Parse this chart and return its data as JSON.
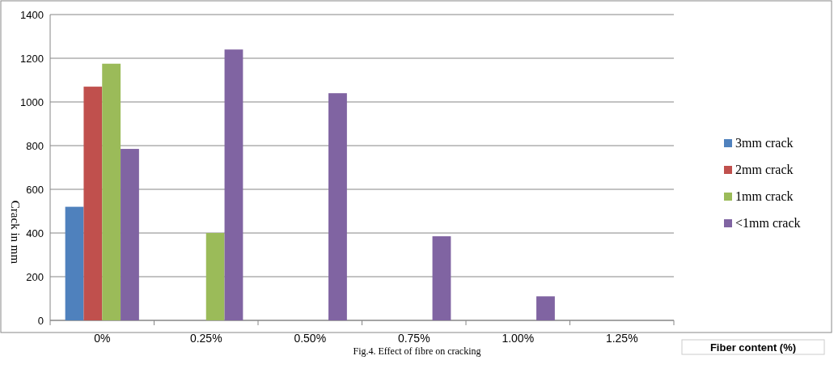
{
  "chart_data": {
    "type": "bar",
    "xlabel": "Fiber content (%)",
    "ylabel": "Crack in mm",
    "annotations": [
      "Fig.4. Effect of fibre on cracking"
    ],
    "categories": [
      "0%",
      "0.25%",
      "0.50%",
      "0.75%",
      "1.00%",
      "1.25%"
    ],
    "series": [
      {
        "name": "3mm crack",
        "color": "#4f81bd",
        "values": [
          520,
          null,
          null,
          null,
          null,
          null
        ]
      },
      {
        "name": "2mm crack",
        "color": "#c0504d",
        "values": [
          1070,
          null,
          null,
          null,
          null,
          null
        ]
      },
      {
        "name": "1mm crack",
        "color": "#9bbb59",
        "values": [
          1175,
          400,
          null,
          null,
          null,
          null
        ]
      },
      {
        "name": "<1mm crack",
        "color": "#8064a2",
        "values": [
          785,
          1240,
          1040,
          385,
          110,
          null
        ]
      }
    ],
    "ylim": [
      0,
      1400
    ],
    "yticks": [
      0,
      200,
      400,
      600,
      800,
      1000,
      1200,
      1400
    ],
    "grid": "y",
    "legend": "right"
  }
}
